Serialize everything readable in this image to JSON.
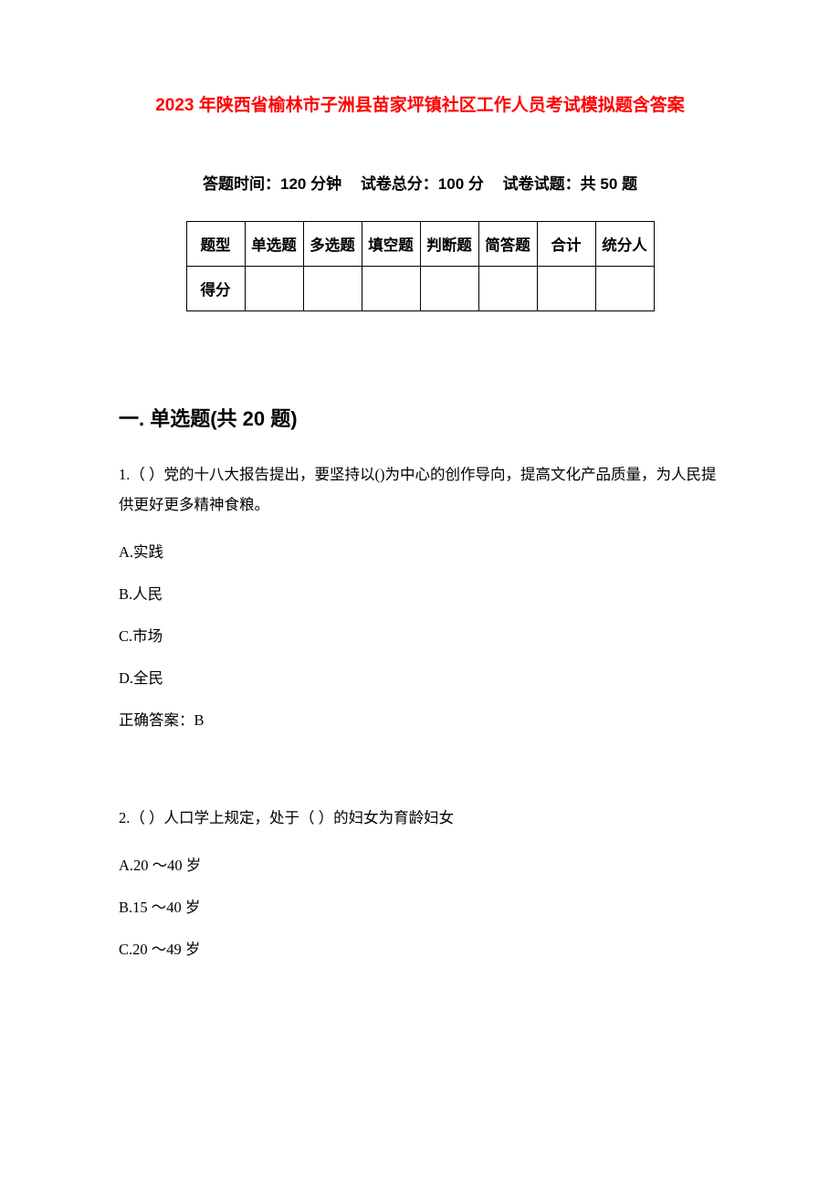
{
  "title": "2023 年陕西省榆林市子洲县苗家坪镇社区工作人员考试模拟题含答案",
  "exam_info": {
    "time_label": "答题时间：120 分钟",
    "total_score_label": "试卷总分：100 分",
    "question_count_label": "试卷试题：共 50 题"
  },
  "score_table": {
    "headers": [
      "题型",
      "单选题",
      "多选题",
      "填空题",
      "判断题",
      "简答题",
      "合计",
      "统分人"
    ],
    "row2_label": "得分"
  },
  "section1": {
    "heading": "一. 单选题(共 20 题)",
    "questions": [
      {
        "text": "1.（ ）党的十八大报告提出，要坚持以()为中心的创作导向，提高文化产品质量，为人民提供更好更多精神食粮。",
        "options": [
          "A.实践",
          "B.人民",
          "C.市场",
          "D.全民"
        ],
        "answer": "正确答案：B"
      },
      {
        "text": "2.（ ）人口学上规定，处于（  ）的妇女为育龄妇女",
        "options": [
          "A.20 ～40 岁",
          "B.15 ～40 岁",
          "C.20 ～49 岁"
        ],
        "answer": null
      }
    ]
  },
  "colors": {
    "title_color": "#ff0000",
    "text_color": "#000000",
    "background": "#ffffff",
    "border_color": "#000000"
  }
}
